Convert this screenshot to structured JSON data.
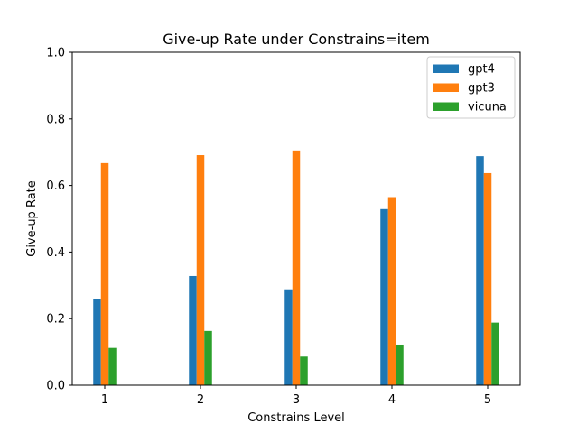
{
  "chart_data": {
    "type": "bar",
    "title": "Give-up Rate under Constrains=item",
    "xlabel": "Constrains Level",
    "ylabel": "Give-up Rate",
    "categories": [
      "1",
      "2",
      "3",
      "4",
      "5"
    ],
    "ylim": [
      0,
      1.0
    ],
    "yticks": [
      "0.0",
      "0.2",
      "0.4",
      "0.6",
      "0.8",
      "1.0"
    ],
    "grid": false,
    "legend_position": "top-right",
    "series": [
      {
        "name": "gpt4",
        "color": "#1f77b4",
        "values": [
          0.26,
          0.328,
          0.288,
          0.529,
          0.688
        ]
      },
      {
        "name": "gpt3",
        "color": "#ff7f0e",
        "values": [
          0.667,
          0.691,
          0.705,
          0.565,
          0.637
        ]
      },
      {
        "name": "vicuna",
        "color": "#2ca02c",
        "values": [
          0.112,
          0.163,
          0.086,
          0.122,
          0.188
        ]
      }
    ]
  }
}
